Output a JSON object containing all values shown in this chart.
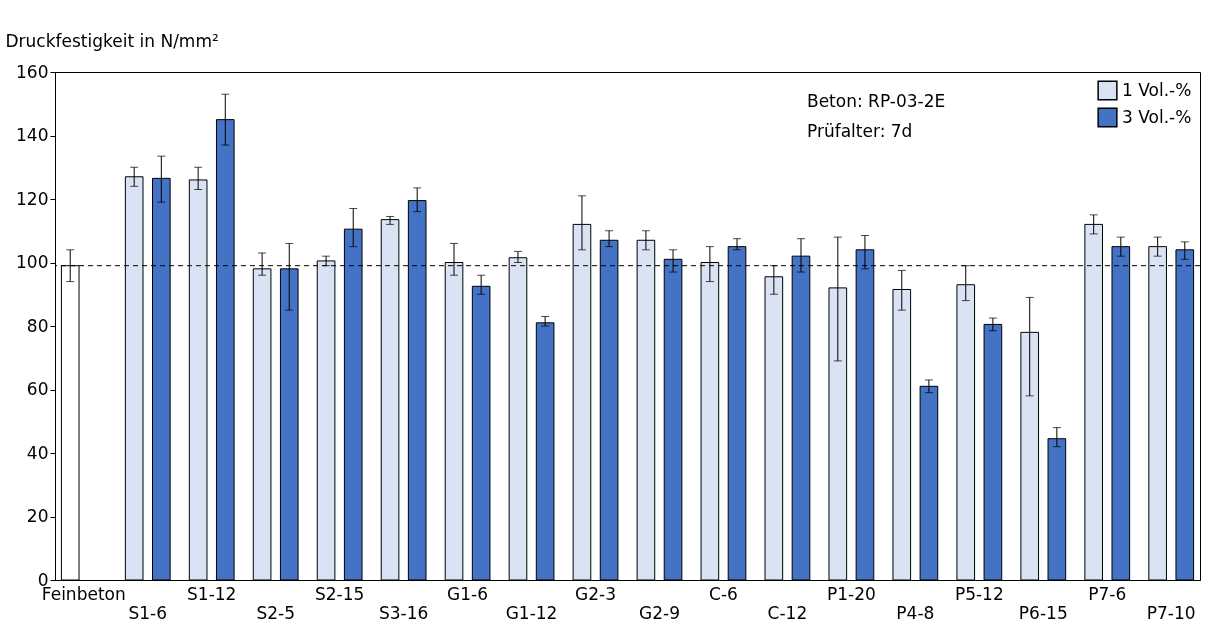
{
  "chart_data": {
    "type": "bar",
    "ylabel": "Druckfestigkeit in N/mm²",
    "categories": [
      "Feinbeton",
      "S1-6",
      "S1-12",
      "S2-5",
      "S2-15",
      "S3-16",
      "G1-6",
      "G1-12",
      "G2-3",
      "G2-9",
      "C-6",
      "C-12",
      "P1-20",
      "P4-8",
      "P5-12",
      "P6-15",
      "P7-6",
      "P7-10"
    ],
    "series": [
      {
        "name": "1 Vol.-%",
        "color": "#dae3f3",
        "colors": [
          "#ffffff",
          "#dae3f3",
          "#dae3f3",
          "#dae3f3",
          "#dae3f3",
          "#dae3f3",
          "#dae3f3",
          "#dae3f3",
          "#dae3f3",
          "#dae3f3",
          "#dae3f3",
          "#dae3f3",
          "#dae3f3",
          "#dae3f3",
          "#dae3f3",
          "#dae3f3",
          "#dae3f3",
          "#dae3f3"
        ],
        "values": [
          99,
          127,
          126,
          98,
          100.5,
          113.5,
          100,
          101.5,
          112,
          107,
          100,
          95.5,
          92,
          91.5,
          93,
          78,
          112,
          105
        ],
        "errors": [
          [
            94,
            104
          ],
          [
            124,
            130
          ],
          [
            123,
            130
          ],
          [
            96,
            103
          ],
          [
            99,
            102
          ],
          [
            112,
            114.5
          ],
          [
            96,
            106
          ],
          [
            100,
            103.5
          ],
          [
            104,
            121
          ],
          [
            104,
            110
          ],
          [
            94,
            105
          ],
          [
            90,
            99
          ],
          [
            69,
            108
          ],
          [
            85,
            97.5
          ],
          [
            88,
            99
          ],
          [
            58,
            89
          ],
          [
            109,
            115
          ],
          [
            102,
            108
          ]
        ]
      },
      {
        "name": "3 Vol.-%",
        "color": "#4472c4",
        "values": [
          null,
          126.5,
          145,
          98,
          110.5,
          119.5,
          92.5,
          81,
          107,
          101,
          105,
          102,
          104,
          61,
          80.5,
          44.5,
          105,
          104
        ],
        "errors": [
          null,
          [
            119,
            133.5
          ],
          [
            137,
            153
          ],
          [
            85,
            106
          ],
          [
            105,
            117
          ],
          [
            116,
            123.5
          ],
          [
            90,
            96
          ],
          [
            80,
            83
          ],
          [
            105,
            110
          ],
          [
            97,
            104
          ],
          [
            104,
            107.5
          ],
          [
            97,
            107.5
          ],
          [
            98,
            108.5
          ],
          [
            59,
            63
          ],
          [
            78.5,
            82.5
          ],
          [
            42,
            48
          ],
          [
            102,
            108
          ],
          [
            101,
            106.5
          ]
        ]
      }
    ],
    "ylim": [
      0,
      160
    ],
    "yticks": [
      0,
      20,
      40,
      60,
      80,
      100,
      120,
      140,
      160
    ],
    "ref_lines": [
      {
        "axis": "y",
        "value": 99,
        "line_style": "dashed"
      }
    ],
    "annotations": [
      "Beton: RP-03-2E",
      "Prüfalter: 7d"
    ],
    "legend": "top right",
    "grid": false
  }
}
